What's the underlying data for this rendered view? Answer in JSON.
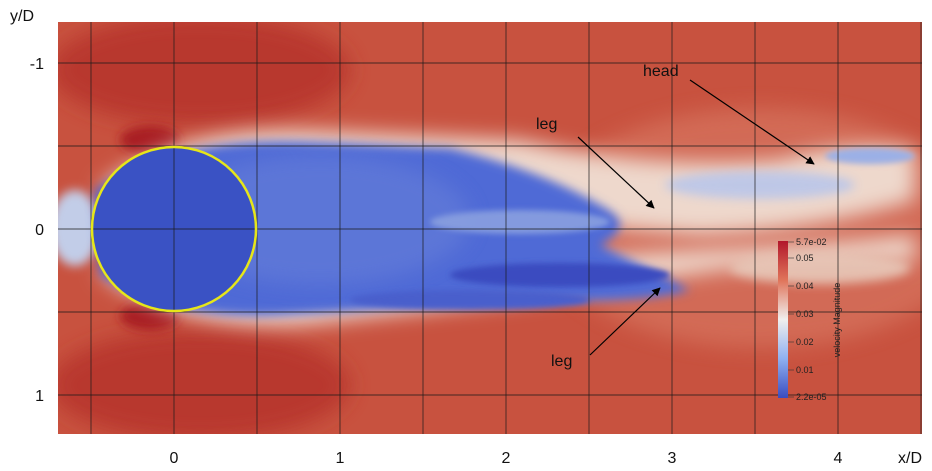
{
  "figure": {
    "x_axis_label": "x/D",
    "y_axis_label": "y/D",
    "x_ticks": [
      "0",
      "1",
      "2",
      "3",
      "4"
    ],
    "y_ticks": [
      "-1",
      "0",
      "1"
    ],
    "annotations": {
      "head": "head",
      "leg_upper": "leg",
      "leg_lower": "leg"
    },
    "colorbar": {
      "title": "velocity Magnitude",
      "max_label": "5.7e-02",
      "min_label": "2.2e-05",
      "ticks": [
        "0.05",
        "0.04",
        "0.03",
        "0.02",
        "0.01"
      ],
      "colors": {
        "high": "#b2172b",
        "mid": "#f0efee",
        "low": "#3a4cc0"
      }
    },
    "cylinder_outline_color": "#e6e619"
  }
}
